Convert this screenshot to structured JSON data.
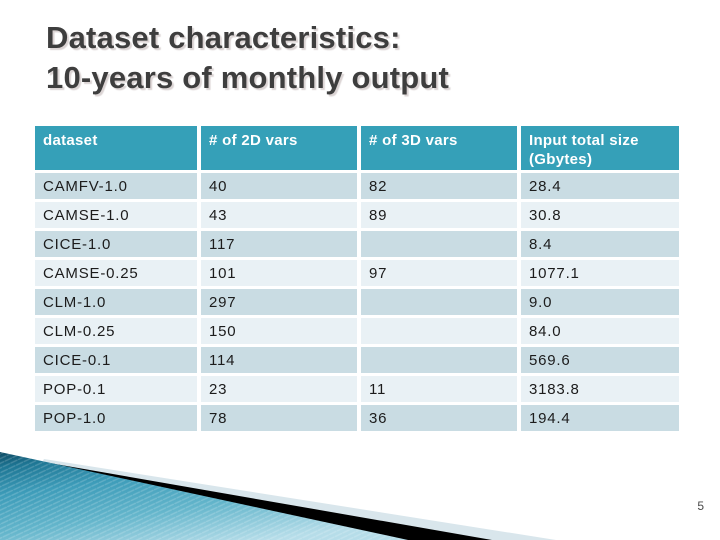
{
  "slide": {
    "title_line1": "Dataset characteristics:",
    "title_line2": "10-years of monthly output",
    "page_number": "5"
  },
  "table": {
    "columns": [
      "dataset",
      "# of 2D vars",
      "# of 3D vars",
      "Input total size (Gbytes)"
    ],
    "rows": [
      {
        "dataset": "CAMFV-1.0",
        "vars2d": "40",
        "vars3d": "82",
        "size": "28.4"
      },
      {
        "dataset": "CAMSE-1.0",
        "vars2d": "43",
        "vars3d": "89",
        "size": "30.8"
      },
      {
        "dataset": "CICE-1.0",
        "vars2d": "117",
        "vars3d": "",
        "size": "8.4"
      },
      {
        "dataset": "CAMSE-0.25",
        "vars2d": "101",
        "vars3d": "97",
        "size": "1077.1"
      },
      {
        "dataset": "CLM-1.0",
        "vars2d": "297",
        "vars3d": "",
        "size": "9.0"
      },
      {
        "dataset": "CLM-0.25",
        "vars2d": "150",
        "vars3d": "",
        "size": "84.0"
      },
      {
        "dataset": "CICE-0.1",
        "vars2d": "114",
        "vars3d": "",
        "size": "569.6"
      },
      {
        "dataset": "POP-0.1",
        "vars2d": "23",
        "vars3d": "11",
        "size": "3183.8"
      },
      {
        "dataset": "POP-1.0",
        "vars2d": "78",
        "vars3d": "36",
        "size": "194.4"
      }
    ]
  },
  "colors": {
    "header_bg": "#35a0b8",
    "row_dark": "#c9dce3",
    "row_light": "#e9f1f5",
    "title_text": "#3e3e3e",
    "wedge_teal_dark": "#0e4a63",
    "wedge_teal_mid": "#3d9cb9",
    "wedge_teal_light": "#a9d6e3",
    "wedge_black": "#000000",
    "wedge_pale": "#d9e6ec"
  }
}
